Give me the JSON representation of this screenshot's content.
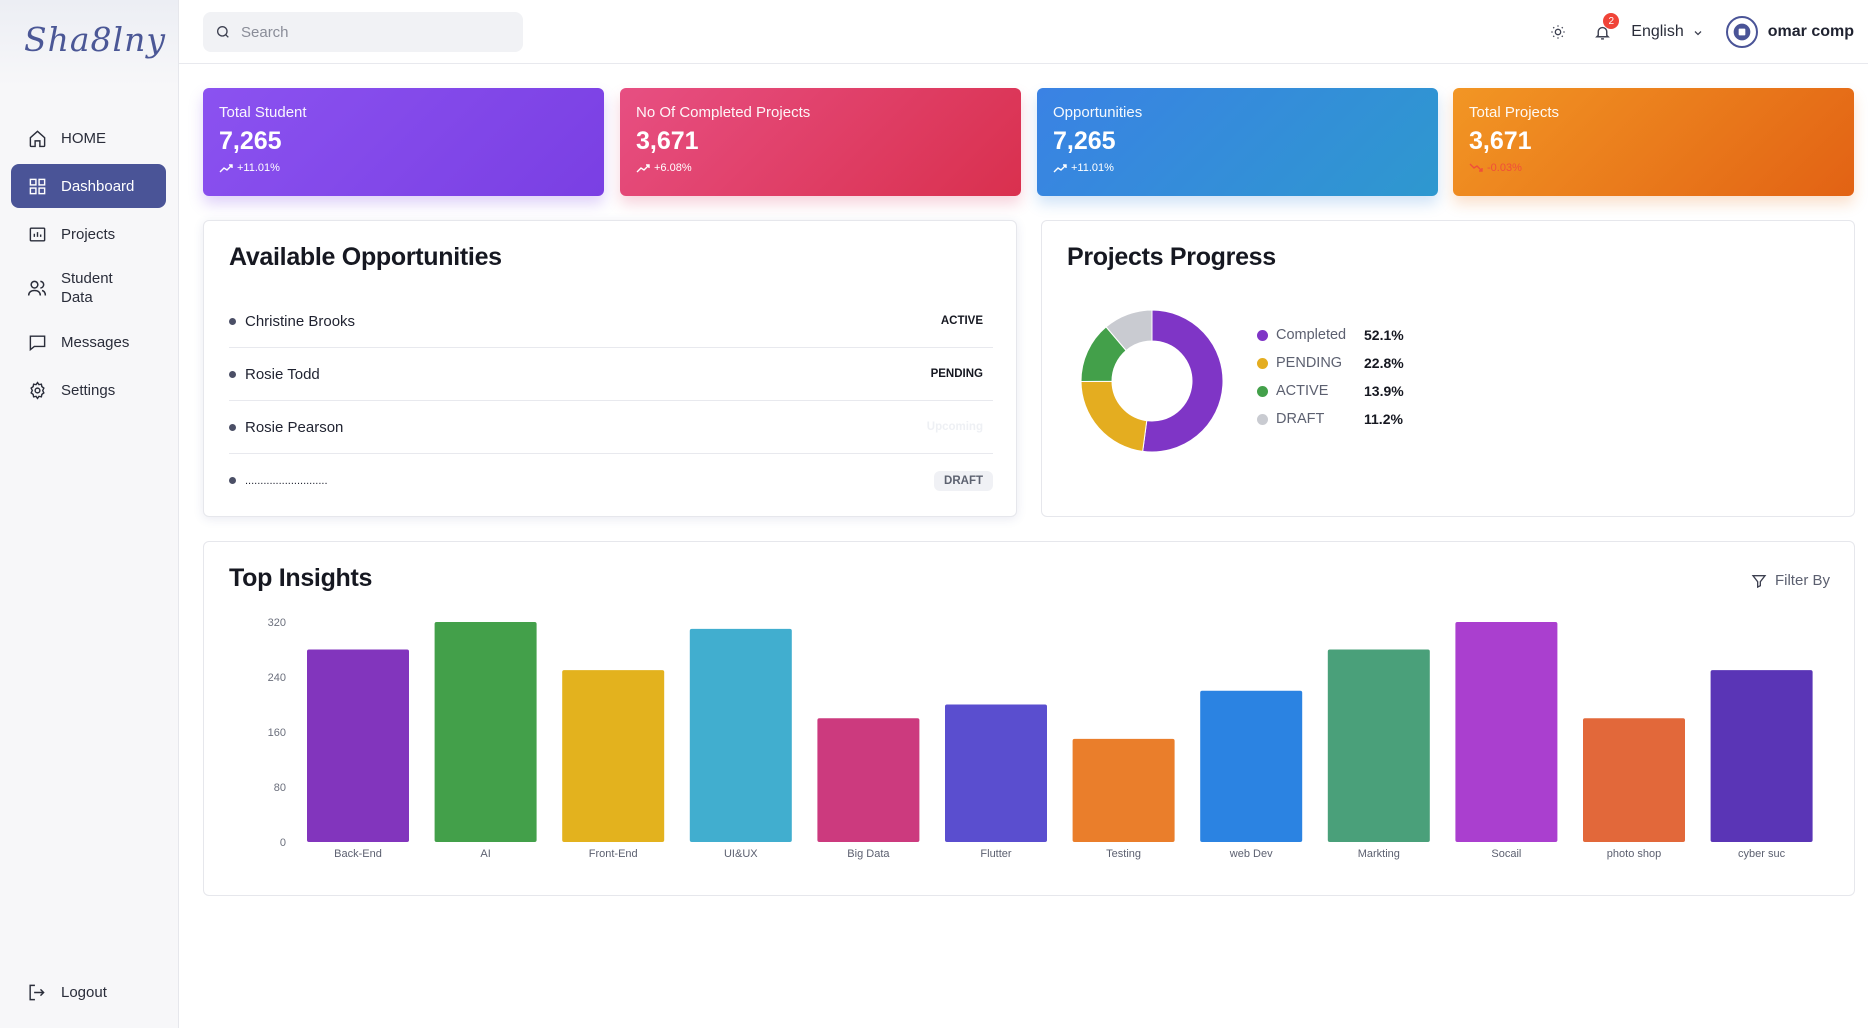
{
  "sidebar": {
    "logo": "Sha8lny",
    "items": [
      {
        "label": "HOME",
        "icon": "home-icon"
      },
      {
        "label": "Dashboard",
        "icon": "dashboard-icon"
      },
      {
        "label": "Projects",
        "icon": "projects-icon"
      },
      {
        "label": "Student Data",
        "icon": "users-icon"
      },
      {
        "label": "Messages",
        "icon": "message-icon"
      },
      {
        "label": "Settings",
        "icon": "gear-icon"
      }
    ],
    "logout_label": "Logout"
  },
  "header": {
    "search_placeholder": "Search",
    "notification_count": "2",
    "language": "English",
    "user_name": "omar comp"
  },
  "stats": [
    {
      "title": "Total Student",
      "value": "7,265",
      "change": "+11.01%",
      "trend": "up"
    },
    {
      "title": "No Of Completed Projects",
      "value": "3,671",
      "change": "+6.08%",
      "trend": "up"
    },
    {
      "title": "Opportunities",
      "value": "7,265",
      "change": "+11.01%",
      "trend": "up"
    },
    {
      "title": "Total Projects",
      "value": "3,671",
      "change": "-0.03%",
      "trend": "down"
    }
  ],
  "opportunities": {
    "title": "Available Opportunities",
    "items": [
      {
        "name": "Christine Brooks",
        "status": "ACTIVE"
      },
      {
        "name": "Rosie Todd",
        "status": "PENDING"
      },
      {
        "name": "Rosie Pearson",
        "status": "Upcoming"
      },
      {
        "name": "...........................",
        "status": "DRAFT"
      }
    ]
  },
  "progress": {
    "title": "Projects Progress",
    "legend": [
      {
        "name": "Completed",
        "value": "52.1%",
        "color": "#7f35c6"
      },
      {
        "name": "PENDING",
        "value": "22.8%",
        "color": "#e4ad20"
      },
      {
        "name": "ACTIVE",
        "value": "13.9%",
        "color": "#43a04a"
      },
      {
        "name": "DRAFT",
        "value": "11.2%",
        "color": "#c9cbd1"
      }
    ]
  },
  "insights": {
    "title": "Top Insights",
    "filter_label": "Filter By"
  },
  "chart_data": [
    {
      "type": "pie",
      "categories": [
        "Completed",
        "PENDING",
        "ACTIVE",
        "DRAFT"
      ],
      "values": [
        52.1,
        22.8,
        13.9,
        11.2
      ],
      "colors": [
        "#7f35c6",
        "#e4ad20",
        "#43a04a",
        "#c9cbd1"
      ],
      "legend": "right"
    },
    {
      "type": "bar",
      "categories": [
        "Back-End",
        "AI",
        "Front-End",
        "UI&UX",
        "Big Data",
        "Flutter",
        "Testing",
        "web Dev",
        "Markting",
        "Socail",
        "photo shop",
        "cyber suc"
      ],
      "values": [
        280,
        320,
        250,
        310,
        180,
        200,
        150,
        220,
        280,
        320,
        180,
        250
      ],
      "colors": [
        "#8235bd",
        "#43a04a",
        "#e3b21e",
        "#41aecf",
        "#cc3a7e",
        "#5a4ecf",
        "#ea7e2b",
        "#2b83e2",
        "#4aa07a",
        "#aa3fcf",
        "#e2683a",
        "#5a35b6"
      ],
      "yticks": [
        0,
        80,
        160,
        240,
        320
      ],
      "ylim": [
        0,
        320
      ],
      "grid": false
    }
  ]
}
